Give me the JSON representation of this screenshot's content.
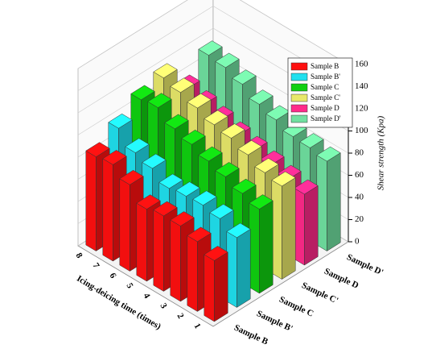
{
  "chart_data": {
    "type": "bar3d",
    "x_label": "Icing-deicing time (times)",
    "z_label": "Shear strength (Kpa)",
    "categories": [
      "1",
      "2",
      "3",
      "4",
      "5",
      "6",
      "7",
      "8"
    ],
    "series": [
      {
        "name": "Sample B",
        "color": "#ff1010",
        "values": [
          55,
          63,
          68,
          68,
          65,
          78,
          87,
          85
        ]
      },
      {
        "name": "Sample B'",
        "color": "#20e0ee",
        "values": [
          63,
          71,
          74,
          73,
          71,
          80,
          85,
          98
        ]
      },
      {
        "name": "Sample C",
        "color": "#10d010",
        "values": [
          76,
          81,
          87,
          92,
          98,
          103,
          113,
          111
        ]
      },
      {
        "name": "Sample C'",
        "color": "#e8e86a",
        "values": [
          84,
          87,
          94,
          100,
          103,
          109,
          114,
          118
        ]
      },
      {
        "name": "Sample D",
        "color": "#ff2a8a",
        "values": [
          64,
          68,
          72,
          76,
          80,
          85,
          90,
          95
        ]
      },
      {
        "name": "Sample D'",
        "color": "#70e0a0",
        "values": [
          81,
          84,
          85,
          91,
          96,
          105,
          111,
          113
        ]
      }
    ],
    "zlim": [
      0,
      160
    ],
    "zticks": [
      0,
      20,
      40,
      60,
      80,
      100,
      120,
      140,
      160
    ]
  }
}
